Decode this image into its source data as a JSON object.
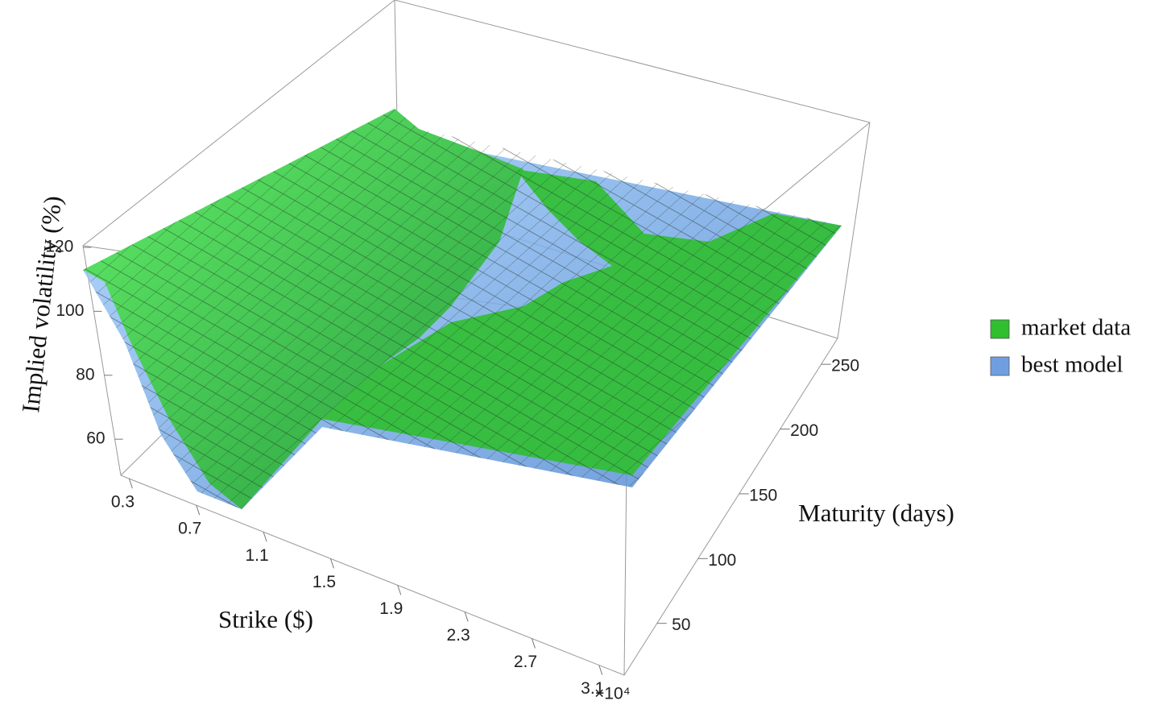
{
  "chart_data": {
    "type": "surface3d",
    "xlabel": "Strike ($)",
    "ylabel": "Maturity (days)",
    "zlabel": "Implied volatility (%)",
    "x_multiplier": "×10⁴",
    "xlim": [
      0.25,
      3.25
    ],
    "xticks": [
      0.3,
      0.7,
      1.1,
      1.5,
      1.9,
      2.3,
      2.7,
      3.1
    ],
    "ylim": [
      10,
      270
    ],
    "yticks": [
      50,
      100,
      150,
      200,
      250
    ],
    "zlim": [
      48.7,
      120.5
    ],
    "zticks": [
      60,
      80,
      100,
      120
    ],
    "series": [
      {
        "name": "market data",
        "color": "#2fbf2f"
      },
      {
        "name": "best model",
        "color": "#6f9fe0"
      }
    ]
  }
}
